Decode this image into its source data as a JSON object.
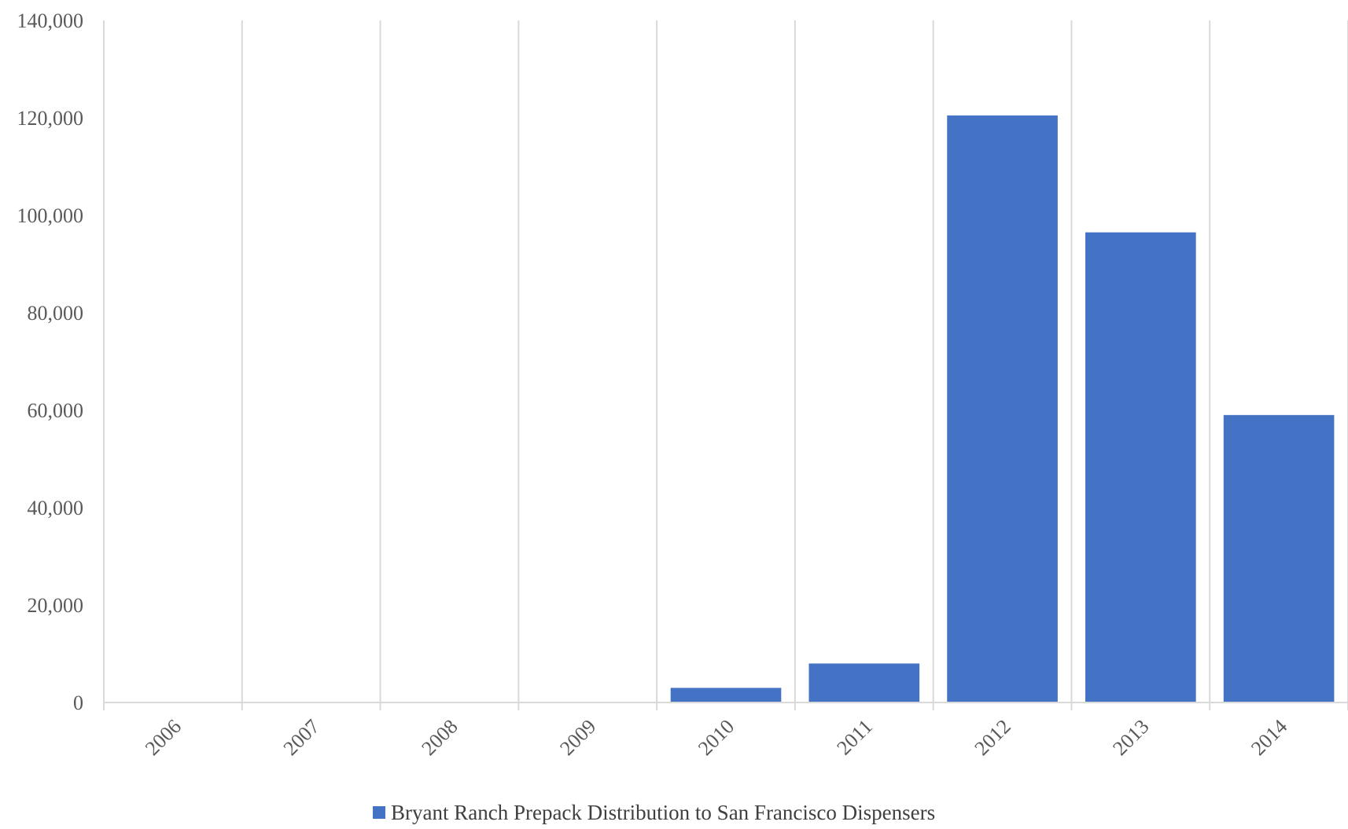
{
  "chart_data": {
    "type": "bar",
    "categories": [
      "2006",
      "2007",
      "2008",
      "2009",
      "2010",
      "2011",
      "2012",
      "2013",
      "2014"
    ],
    "series": [
      {
        "name": "Bryant Ranch Prepack Distribution to San Francisco Dispensers",
        "values": [
          0,
          0,
          0,
          0,
          3000,
          8000,
          120500,
          96500,
          59000
        ],
        "color": "#4472C4"
      }
    ],
    "ylim": [
      0,
      140000
    ],
    "yticks": [
      0,
      20000,
      40000,
      60000,
      80000,
      100000,
      120000,
      140000
    ],
    "ytick_labels": [
      "0",
      "20,000",
      "40,000",
      "60,000",
      "80,000",
      "100,000",
      "120,000",
      "140,000"
    ],
    "title": "",
    "xlabel": "",
    "ylabel": "",
    "grid": "vertical",
    "legend_position": "bottom-center",
    "colors": {
      "bar": "#4472C4",
      "grid": "#D9D9D9",
      "axis": "#D9D9D9",
      "text": "#595959"
    }
  }
}
